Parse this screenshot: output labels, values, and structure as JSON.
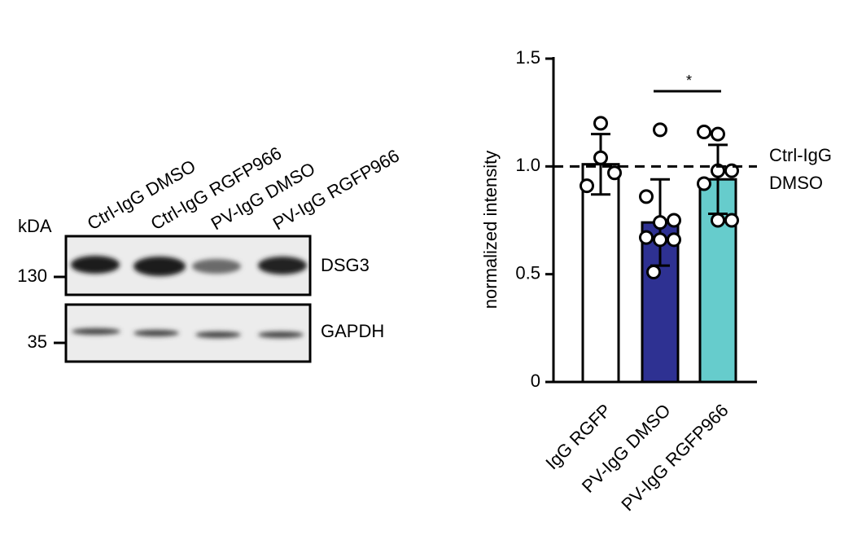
{
  "blot": {
    "kda_label": "kDA",
    "lanes": [
      "Ctrl-IgG DMSO",
      "Ctrl-IgG RGFP966",
      "PV-IgG DMSO",
      "PV-IgG RGFP966"
    ],
    "markers": [
      "130",
      "35"
    ],
    "proteins": [
      "DSG3",
      "GAPDH"
    ]
  },
  "chart_data": {
    "type": "bar",
    "ylabel": "normalized intensity",
    "categories": [
      "IgG RGFP",
      "PV-IgG DMSO",
      "PV-IgG RGFP966"
    ],
    "values": [
      1.01,
      0.74,
      0.94
    ],
    "errors": [
      0.14,
      0.2,
      0.16
    ],
    "colors": [
      "#ffffff",
      "#2e3192",
      "#66cccc"
    ],
    "points": [
      [
        1.2,
        0.91,
        0.97,
        1.04
      ],
      [
        1.17,
        0.86,
        0.75,
        0.74,
        0.67,
        0.66,
        0.66,
        0.51
      ],
      [
        1.15,
        1.16,
        0.98,
        0.98,
        0.92,
        0.75,
        0.75
      ]
    ],
    "reference_line": {
      "value": 1,
      "label": [
        "Ctrl-IgG",
        "DMSO"
      ]
    },
    "significance": {
      "from": 1,
      "to": 2,
      "label": "*"
    },
    "ylim": [
      0,
      1.5
    ],
    "yticks": [
      0,
      0.5,
      {
        "value": 1,
        "label": "1.0"
      },
      1.5
    ]
  }
}
